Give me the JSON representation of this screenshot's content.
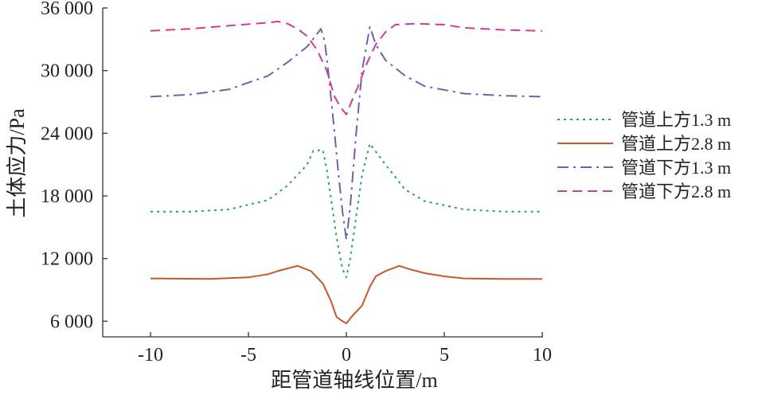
{
  "chart_data": {
    "type": "line",
    "xlabel": "距管道轴线位置/m",
    "ylabel": "土体应力/Pa",
    "xlim": [
      -12.5,
      10
    ],
    "ylim": [
      4500,
      36000
    ],
    "x_ticks": [
      -10,
      -5,
      0,
      5,
      10
    ],
    "x_tick_labels": [
      "-10",
      "-5",
      "0",
      "5",
      "10"
    ],
    "y_ticks": [
      6000,
      12000,
      18000,
      24000,
      30000,
      36000
    ],
    "y_tick_labels": [
      "6 000",
      "12 000",
      "18 000",
      "24 000",
      "30 000",
      "36 000"
    ],
    "grid": false,
    "legend_position": "right",
    "series": [
      {
        "name": "管道上方1.3 m",
        "color": "#2e9a78",
        "dash": "dotted",
        "points": [
          [
            -10,
            16500
          ],
          [
            -8,
            16500
          ],
          [
            -6,
            16700
          ],
          [
            -4,
            17600
          ],
          [
            -3,
            19000
          ],
          [
            -2,
            21000
          ],
          [
            -1.7,
            22300
          ],
          [
            -1.2,
            22400
          ],
          [
            -1,
            20500
          ],
          [
            -0.8,
            18000
          ],
          [
            -0.5,
            14000
          ],
          [
            -0.2,
            11000
          ],
          [
            0,
            10200
          ],
          [
            0.2,
            12000
          ],
          [
            0.5,
            16000
          ],
          [
            0.8,
            20000
          ],
          [
            1.2,
            23000
          ],
          [
            2,
            21000
          ],
          [
            3,
            18600
          ],
          [
            4,
            17500
          ],
          [
            6,
            16700
          ],
          [
            8,
            16500
          ],
          [
            10,
            16500
          ]
        ]
      },
      {
        "name": "管道上方2.8 m",
        "color": "#c8572a",
        "dash": "solid",
        "points": [
          [
            -10,
            10100
          ],
          [
            -7,
            10050
          ],
          [
            -5,
            10200
          ],
          [
            -4,
            10500
          ],
          [
            -3.5,
            10800
          ],
          [
            -2.5,
            11300
          ],
          [
            -1.8,
            10800
          ],
          [
            -1.5,
            10200
          ],
          [
            -1.2,
            9600
          ],
          [
            -0.8,
            8000
          ],
          [
            -0.5,
            6400
          ],
          [
            -0.2,
            6000
          ],
          [
            0,
            5800
          ],
          [
            0.3,
            6500
          ],
          [
            0.8,
            7500
          ],
          [
            1.2,
            9300
          ],
          [
            1.5,
            10300
          ],
          [
            2,
            10800
          ],
          [
            2.7,
            11300
          ],
          [
            3.2,
            11000
          ],
          [
            4,
            10600
          ],
          [
            5,
            10300
          ],
          [
            6,
            10100
          ],
          [
            8,
            10050
          ],
          [
            10,
            10050
          ]
        ]
      },
      {
        "name": "管道下方1.3 m",
        "color": "#6a62b0",
        "dash": "dashdot",
        "points": [
          [
            -10,
            27500
          ],
          [
            -8,
            27700
          ],
          [
            -6,
            28200
          ],
          [
            -4,
            29500
          ],
          [
            -3,
            30800
          ],
          [
            -2,
            32300
          ],
          [
            -1.5,
            33500
          ],
          [
            -1.3,
            34000
          ],
          [
            -1.1,
            32800
          ],
          [
            -0.9,
            29500
          ],
          [
            -0.6,
            24000
          ],
          [
            -0.4,
            20000
          ],
          [
            -0.2,
            16500
          ],
          [
            0,
            13800
          ],
          [
            0.2,
            17000
          ],
          [
            0.5,
            24000
          ],
          [
            0.8,
            30000
          ],
          [
            1.2,
            34200
          ],
          [
            1.5,
            32500
          ],
          [
            2,
            31000
          ],
          [
            3,
            29500
          ],
          [
            4,
            28500
          ],
          [
            6,
            27800
          ],
          [
            8,
            27600
          ],
          [
            10,
            27500
          ]
        ]
      },
      {
        "name": "管道下方2.8 m",
        "color": "#d43b8f",
        "dash": "dashed",
        "points": [
          [
            -10,
            33800
          ],
          [
            -8,
            34000
          ],
          [
            -6,
            34300
          ],
          [
            -4,
            34600
          ],
          [
            -3.5,
            34700
          ],
          [
            -3,
            34500
          ],
          [
            -2.5,
            34000
          ],
          [
            -2,
            33300
          ],
          [
            -1.5,
            32000
          ],
          [
            -1,
            30000
          ],
          [
            -0.6,
            27500
          ],
          [
            -0.3,
            26500
          ],
          [
            0,
            25800
          ],
          [
            0.3,
            27200
          ],
          [
            0.6,
            28500
          ],
          [
            1,
            30500
          ],
          [
            1.5,
            32500
          ],
          [
            2,
            33700
          ],
          [
            2.5,
            34400
          ],
          [
            3.5,
            34500
          ],
          [
            5,
            34400
          ],
          [
            6,
            34100
          ],
          [
            8,
            33900
          ],
          [
            10,
            33800
          ]
        ]
      }
    ]
  }
}
